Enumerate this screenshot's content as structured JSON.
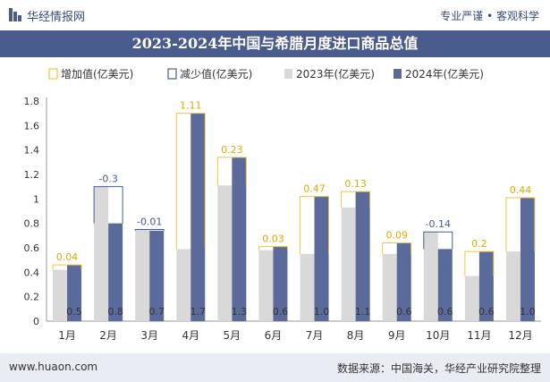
{
  "header": {
    "brand": "华经情报网",
    "tagline": "专业严谨 • 客观科学",
    "title": "2023-2024年中国与希腊月度进口商品总值"
  },
  "footer": {
    "site": "www.huaon.com",
    "source": "数据来源：中国海关，华经产业研究院整理"
  },
  "colors": {
    "increase": "#f5c242",
    "decrease": "#4a5b8e",
    "series2023": "#d9d9d9",
    "series2024": "#5a6a9a",
    "header": "#4a5b8e"
  },
  "chart_data": {
    "type": "bar",
    "categories": [
      "1月",
      "2月",
      "3月",
      "4月",
      "5月",
      "6月",
      "7月",
      "8月",
      "9月",
      "10月",
      "11月",
      "12月"
    ],
    "series": [
      {
        "name": "2023年(亿美元)",
        "values": [
          0.42,
          1.1,
          0.75,
          0.59,
          1.11,
          0.58,
          0.55,
          0.93,
          0.55,
          0.73,
          0.37,
          0.57
        ]
      },
      {
        "name": "2024年(亿美元)",
        "values": [
          0.46,
          0.8,
          0.74,
          1.7,
          1.34,
          0.61,
          1.02,
          1.06,
          0.64,
          0.59,
          0.57,
          1.01
        ]
      }
    ],
    "changes": [
      "0.04",
      "-0.3",
      "-0.01",
      "1.11",
      "0.23",
      "0.03",
      "0.47",
      "0.13",
      "0.09",
      "-0.14",
      "0.2",
      "0.44"
    ],
    "bar_labels": [
      "0.5",
      "0.8",
      "0.7",
      "1.7",
      "1.3",
      "0.6",
      "1.0",
      "1.1",
      "0.6",
      "0.6",
      "0.6",
      "1.0"
    ],
    "legend": [
      "增加值(亿美元)",
      "减少值(亿美元)",
      "2023年(亿美元)",
      "2024年(亿美元)"
    ],
    "legend_position": "top",
    "ylim": [
      0,
      1.8
    ],
    "yticks": [
      "0",
      "0.2",
      "0.4",
      "0.6",
      "0.8",
      "1",
      "1.2",
      "1.4",
      "1.6",
      "1.8"
    ],
    "grid": false
  }
}
